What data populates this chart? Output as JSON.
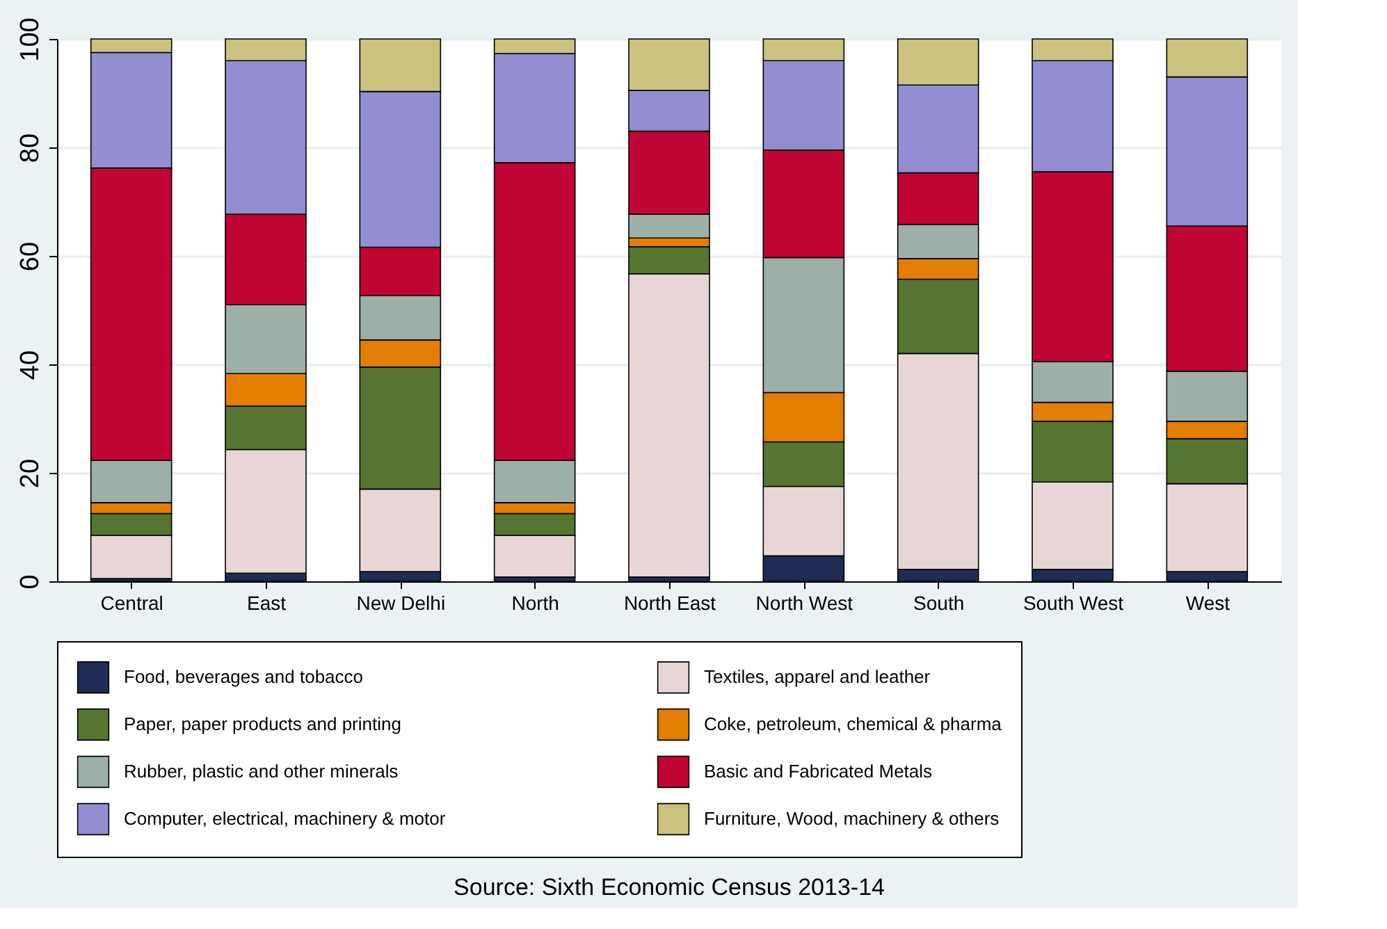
{
  "chart_data": {
    "type": "bar",
    "stacked": true,
    "categories": [
      "Central",
      "East",
      "New Delhi",
      "North",
      "North East",
      "North West",
      "South",
      "South West",
      "West"
    ],
    "series": [
      {
        "name": "Food, beverages and tobacco",
        "color": "#1f2c56",
        "values": [
          0.5,
          1.5,
          1.8,
          0.8,
          0.8,
          4.7,
          2.2,
          2.2,
          1.8
        ]
      },
      {
        "name": "Textiles, apparel and leather",
        "color": "#e8d6d6",
        "values": [
          8.0,
          22.8,
          15.2,
          7.7,
          55.9,
          12.8,
          39.8,
          16.1,
          16.2
        ]
      },
      {
        "name": "Paper, paper products and printing",
        "color": "#557530",
        "values": [
          4.0,
          8.0,
          22.5,
          4.0,
          5.0,
          8.2,
          13.7,
          11.2,
          8.3
        ]
      },
      {
        "name": "Coke, petroleum, chemical & pharma",
        "color": "#e37e00",
        "values": [
          2.0,
          6.0,
          5.0,
          2.0,
          1.6,
          9.1,
          3.8,
          3.5,
          3.2
        ]
      },
      {
        "name": "Rubber, plastic and other minerals",
        "color": "#9db0a8",
        "values": [
          7.8,
          12.7,
          8.2,
          7.8,
          4.4,
          24.9,
          6.3,
          7.5,
          9.2
        ]
      },
      {
        "name": "Basic and Fabricated Metals",
        "color": "#c10534",
        "values": [
          53.9,
          16.7,
          8.9,
          54.9,
          15.3,
          19.8,
          9.5,
          35.0,
          26.8
        ]
      },
      {
        "name": "Computer, electrical, machinery & motor",
        "color": "#938dd2",
        "values": [
          21.3,
          28.3,
          28.7,
          20.1,
          7.5,
          16.5,
          16.2,
          20.5,
          27.5
        ]
      },
      {
        "name": "Furniture, Wood, machinery & others",
        "color": "#cac27e",
        "values": [
          2.5,
          4.0,
          9.7,
          2.7,
          9.5,
          4.0,
          8.5,
          4.0,
          7.0
        ]
      }
    ],
    "ylim": [
      0,
      100
    ],
    "yticks": [
      0,
      20,
      40,
      60,
      80,
      100
    ],
    "grid": "y",
    "legend": "bottom",
    "annotations": [
      "Source: Sixth Economic Census 2013-14"
    ]
  }
}
